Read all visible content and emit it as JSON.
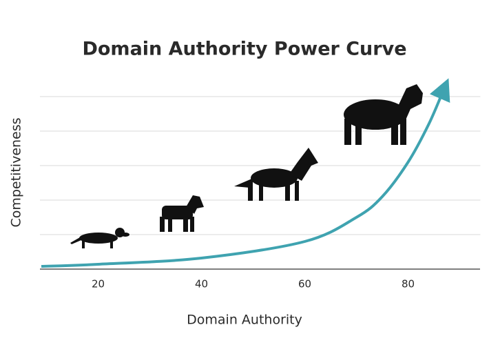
{
  "chart_data": {
    "type": "line",
    "title": "Domain Authority Power Curve",
    "x_label": "Domain Authority",
    "y_label": "Competitiveness",
    "x": [
      9,
      20,
      40,
      60,
      70,
      75,
      80,
      84,
      87
    ],
    "series": [
      {
        "color": "#3fa3b0",
        "values": [
          0.08,
          0.14,
          0.32,
          0.8,
          1.5,
          2.1,
          3.1,
          4.2,
          5.24
        ]
      }
    ],
    "xlim": [
      9,
      94
    ],
    "xticks": [
      20,
      40,
      60,
      80
    ],
    "ylim": [
      0,
      5.5
    ],
    "yticks": [
      1,
      2,
      3,
      4,
      5
    ],
    "grid": true
  }
}
